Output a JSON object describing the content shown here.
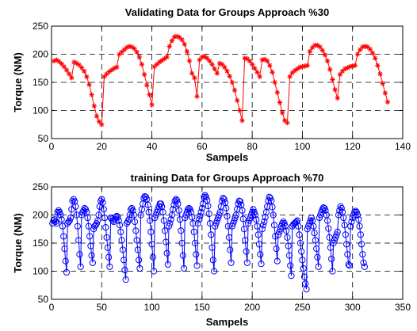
{
  "chart_data": [
    {
      "type": "line",
      "title": "Validating Data for Groups Approach %30",
      "xlabel": "Sampels",
      "ylabel": "Torque (NM)",
      "xlim": [
        0,
        140
      ],
      "ylim": [
        50,
        250
      ],
      "xticks": [
        0,
        20,
        40,
        60,
        80,
        100,
        120,
        140
      ],
      "yticks": [
        50,
        100,
        150,
        200,
        250
      ],
      "grid": "dashed",
      "marker": "*",
      "color": "#ff0000",
      "y": [
        188,
        190,
        187,
        183,
        178,
        172,
        165,
        158,
        186,
        184,
        181,
        176,
        170,
        160,
        146,
        128,
        108,
        90,
        80,
        75,
        160,
        165,
        169,
        172,
        175,
        177,
        200,
        204,
        208,
        212,
        214,
        213,
        210,
        204,
        195,
        182,
        164,
        145,
        128,
        110,
        178,
        182,
        186,
        189,
        192,
        195,
        214,
        224,
        231,
        232,
        230,
        226,
        218,
        205,
        188,
        166,
        158,
        125,
        190,
        195,
        196,
        193,
        188,
        182,
        174,
        166,
        184,
        182,
        177,
        170,
        161,
        150,
        136,
        118,
        100,
        82,
        193,
        192,
        188,
        182,
        175,
        168,
        160,
        190,
        191,
        188,
        180,
        168,
        150,
        132,
        114,
        96,
        82,
        78,
        160,
        167,
        171,
        174,
        177,
        178,
        179,
        180,
        205,
        212,
        216,
        216,
        213,
        207,
        199,
        188,
        173,
        155,
        137,
        122,
        164,
        170,
        174,
        176,
        178,
        179,
        180,
        200,
        208,
        213,
        214,
        213,
        209,
        202,
        193,
        180,
        165,
        148,
        131,
        115
      ]
    },
    {
      "type": "line",
      "title": "training Data for Groups Approach %70",
      "xlabel": "Sampels",
      "ylabel": "Torque (NM)",
      "xlim": [
        0,
        350
      ],
      "ylim": [
        50,
        250
      ],
      "xticks": [
        0,
        50,
        100,
        150,
        200,
        250,
        300,
        350
      ],
      "yticks": [
        50,
        100,
        150,
        200,
        250
      ],
      "grid": "dashed",
      "marker": "o",
      "color": "#0000ff",
      "y": [
        185,
        190,
        192,
        188,
        185,
        205,
        208,
        205,
        200,
        192,
        180,
        162,
        140,
        118,
        98,
        185,
        188,
        190,
        195,
        210,
        225,
        228,
        224,
        215,
        200,
        180,
        155,
        130,
        108,
        200,
        205,
        208,
        212,
        210,
        205,
        195,
        180,
        162,
        145,
        128,
        115,
        175,
        180,
        182,
        185,
        190,
        200,
        215,
        225,
        228,
        222,
        210,
        195,
        178,
        160,
        142,
        125,
        108,
        195,
        193,
        190,
        188,
        192,
        196,
        198,
        196,
        190,
        182,
        170,
        155,
        138,
        120,
        102,
        85,
        185,
        188,
        192,
        200,
        210,
        212,
        208,
        200,
        188,
        172,
        155,
        138,
        120,
        105,
        200,
        210,
        220,
        230,
        233,
        232,
        228,
        218,
        205,
        190,
        170,
        148,
        125,
        100,
        195,
        200,
        205,
        210,
        215,
        220,
        220,
        215,
        205,
        190,
        172,
        152,
        132,
        112,
        180,
        185,
        192,
        200,
        210,
        218,
        225,
        228,
        226,
        220,
        208,
        192,
        172,
        150,
        128,
        105,
        195,
        200,
        205,
        210,
        212,
        210,
        205,
        196,
        185,
        170,
        150,
        130,
        110,
        185,
        192,
        198,
        205,
        212,
        220,
        232,
        235,
        232,
        226,
        216,
        202,
        185,
        165,
        142,
        120,
        100,
        180,
        185,
        190,
        195,
        200,
        205,
        215,
        225,
        230,
        228,
        222,
        212,
        198,
        180,
        160,
        138,
        115,
        180,
        185,
        190,
        195,
        200,
        210,
        220,
        225,
        224,
        218,
        208,
        193,
        175,
        155,
        135,
        115,
        185,
        190,
        195,
        200,
        205,
        210,
        205,
        200,
        192,
        180,
        165,
        148,
        130,
        113,
        175,
        182,
        188,
        196,
        205,
        215,
        225,
        232,
        230,
        225,
        214,
        200,
        182,
        162,
        140,
        118,
        165,
        170,
        175,
        180,
        185,
        188,
        185,
        180,
        172,
        160,
        145,
        128,
        110,
        92,
        180,
        183,
        185,
        186,
        188,
        190,
        180,
        165,
        150,
        135,
        120,
        105,
        90,
        78,
        68,
        175,
        180,
        185,
        190,
        195,
        190,
        180,
        168,
        155,
        140,
        125,
        108,
        195,
        200,
        205,
        210,
        213,
        212,
        208,
        200,
        190,
        176,
        160,
        142,
        122,
        100,
        150,
        155,
        160,
        165,
        170,
        200,
        208,
        215,
        212,
        205,
        195,
        182,
        165,
        148,
        130,
        112,
        110,
        180,
        188,
        195,
        200,
        205,
        207,
        205,
        200,
        192,
        180,
        165,
        148,
        130,
        115,
        108
      ]
    }
  ]
}
